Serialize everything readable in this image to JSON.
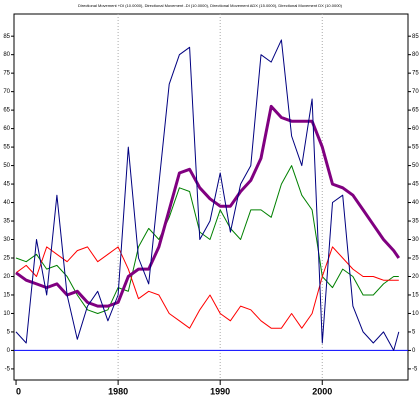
{
  "chart_data": {
    "type": "line",
    "title": "Directional Movement +DI (10.0000), Directional Movement -DI (10.0000), Directional Movement ADX (15.0000), Directional Movement DX (10.0000)",
    "x": [
      1970,
      1971,
      1972,
      1973,
      1974,
      1975,
      1976,
      1977,
      1978,
      1979,
      1980,
      1981,
      1982,
      1983,
      1984,
      1985,
      1986,
      1987,
      1988,
      1989,
      1990,
      1991,
      1992,
      1993,
      1994,
      1995,
      1996,
      1997,
      1998,
      1999,
      2000,
      2001,
      2002,
      2003,
      2004,
      2005,
      2006,
      2007,
      2007.5
    ],
    "series": [
      {
        "name": "+DI",
        "color": "#008000",
        "width": 1,
        "values": [
          25,
          24,
          26,
          22,
          23,
          20,
          15,
          11,
          10,
          11,
          17,
          16,
          28,
          33,
          30,
          36,
          44,
          43,
          32,
          30,
          38,
          33,
          30,
          38,
          38,
          36,
          45,
          50,
          42,
          38,
          20,
          17,
          22,
          20,
          15,
          15,
          18,
          20,
          20
        ]
      },
      {
        "name": "-DI",
        "color": "#ff0000",
        "width": 1,
        "values": [
          21,
          23,
          20,
          28,
          26,
          24,
          27,
          28,
          24,
          26,
          28,
          22,
          14,
          16,
          15,
          10,
          8,
          6,
          11,
          15,
          10,
          8,
          12,
          11,
          8,
          6,
          6,
          10,
          6,
          10,
          20,
          28,
          25,
          22,
          20,
          20,
          19,
          19,
          19
        ]
      },
      {
        "name": "ADX",
        "color": "#800080",
        "width": 3,
        "values": [
          21,
          19,
          18,
          17,
          18,
          15,
          16,
          13,
          12,
          12,
          13,
          20,
          22,
          22,
          28,
          38,
          48,
          49,
          44,
          41,
          39,
          39,
          43,
          46,
          52,
          66,
          63,
          62,
          62,
          62,
          55,
          45,
          44,
          42,
          38,
          34,
          30,
          27,
          25
        ]
      },
      {
        "name": "DX",
        "color": "#000080",
        "width": 1,
        "values": [
          5,
          2,
          30,
          15,
          42,
          15,
          3,
          12,
          16,
          8,
          15,
          55,
          25,
          18,
          45,
          72,
          80,
          82,
          30,
          35,
          48,
          32,
          45,
          50,
          80,
          78,
          84,
          58,
          50,
          68,
          2,
          40,
          42,
          12,
          5,
          2,
          5,
          0,
          5
        ]
      }
    ],
    "reference_line": 0,
    "reference_color": "#0000ff",
    "xlim": [
      1969.8,
      2008.4
    ],
    "xticks": [
      {
        "value": 1970,
        "label": "0"
      },
      1980,
      1990,
      2000
    ],
    "ylim": [
      -8,
      91
    ],
    "yticks": [
      -5,
      0,
      5,
      10,
      15,
      20,
      25,
      30,
      35,
      40,
      45,
      50,
      55,
      60,
      65,
      70,
      75,
      80,
      85
    ],
    "grid": true
  }
}
